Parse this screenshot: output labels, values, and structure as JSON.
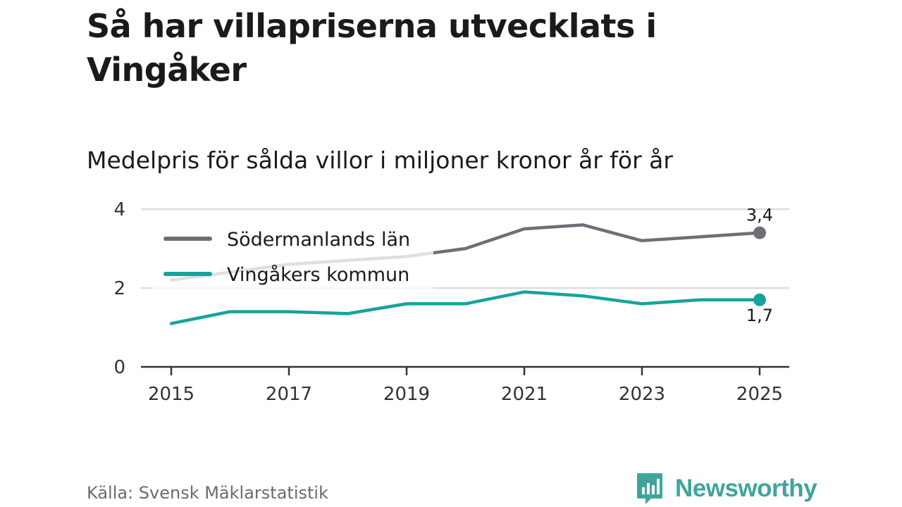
{
  "header": {
    "title": "Så har villapriserna utvecklats i Vingåker",
    "subtitle": "Medelpris för sålda villor i miljoner kronor år för år"
  },
  "footer": {
    "source": "Källa: Svensk Mäklarstatistik",
    "brand": "Newsworthy"
  },
  "colors": {
    "series_county": "#6f6e75",
    "series_municipality": "#17a39a",
    "grid": "#dcdcdc",
    "axis": "#333333",
    "brand": "#3fa59a"
  },
  "chart_data": {
    "type": "line",
    "title": "Så har villapriserna utvecklats i Vingåker",
    "subtitle": "Medelpris för sålda villor i miljoner kronor år för år",
    "xlabel": "",
    "ylabel": "",
    "x": [
      2015,
      2016,
      2017,
      2018,
      2019,
      2020,
      2021,
      2022,
      2023,
      2024,
      2025
    ],
    "xticks": [
      "2015",
      "2017",
      "2019",
      "2021",
      "2023",
      "2025"
    ],
    "yticks": [
      "0",
      "2",
      "4"
    ],
    "ylim": [
      0,
      4
    ],
    "grid": true,
    "legend": "top-left",
    "series": [
      {
        "name": "Södermanlands län",
        "values": [
          2.2,
          2.4,
          2.6,
          2.7,
          2.8,
          3.0,
          3.5,
          3.6,
          3.2,
          3.3,
          3.4
        ],
        "end_label": "3,4"
      },
      {
        "name": "Vingåkers kommun",
        "values": [
          1.1,
          1.4,
          1.4,
          1.35,
          1.6,
          1.6,
          1.9,
          1.8,
          1.6,
          1.7,
          1.7
        ],
        "end_label": "1,7"
      }
    ]
  }
}
